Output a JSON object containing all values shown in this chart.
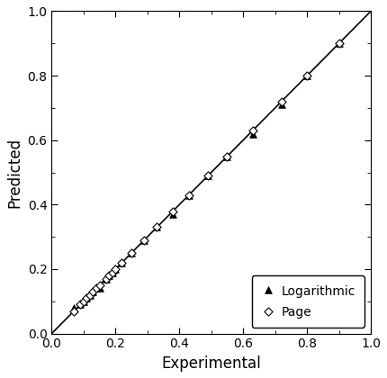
{
  "title": "",
  "xlabel": "Experimental",
  "ylabel": "Predicted",
  "xlim": [
    0.0,
    1.0
  ],
  "ylim": [
    0.0,
    1.0
  ],
  "xticks": [
    0.0,
    0.2,
    0.4,
    0.6,
    0.8,
    1.0
  ],
  "yticks": [
    0.0,
    0.2,
    0.4,
    0.6,
    0.8,
    1.0
  ],
  "diagonal_line": [
    0.0,
    1.0
  ],
  "page_x": [
    0.07,
    0.09,
    0.1,
    0.11,
    0.12,
    0.13,
    0.14,
    0.15,
    0.17,
    0.18,
    0.19,
    0.2,
    0.22,
    0.25,
    0.29,
    0.33,
    0.38,
    0.43,
    0.49,
    0.55,
    0.63,
    0.72,
    0.8,
    0.9
  ],
  "page_y": [
    0.07,
    0.09,
    0.1,
    0.11,
    0.12,
    0.13,
    0.14,
    0.15,
    0.17,
    0.18,
    0.19,
    0.2,
    0.22,
    0.25,
    0.29,
    0.33,
    0.38,
    0.43,
    0.49,
    0.55,
    0.63,
    0.72,
    0.8,
    0.9
  ],
  "log_x": [
    0.07,
    0.09,
    0.1,
    0.11,
    0.12,
    0.13,
    0.14,
    0.15,
    0.17,
    0.18,
    0.19,
    0.2,
    0.22,
    0.25,
    0.29,
    0.33,
    0.38,
    0.43,
    0.49,
    0.55,
    0.63,
    0.72,
    0.8,
    0.9
  ],
  "log_y": [
    0.08,
    0.09,
    0.1,
    0.11,
    0.12,
    0.13,
    0.14,
    0.14,
    0.17,
    0.18,
    0.19,
    0.2,
    0.22,
    0.25,
    0.29,
    0.33,
    0.37,
    0.43,
    0.49,
    0.55,
    0.62,
    0.71,
    0.8,
    0.9
  ],
  "page_color": "black",
  "log_color": "black",
  "line_color": "black",
  "background_color": "white",
  "fontsize_labels": 12,
  "fontsize_ticks": 10,
  "legend_fontsize": 10
}
